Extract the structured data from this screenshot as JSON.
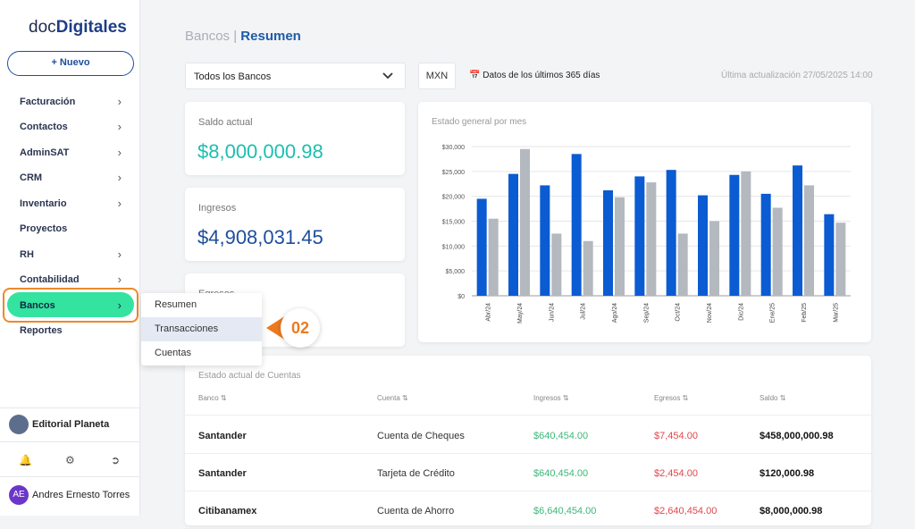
{
  "sidebar": {
    "logo": {
      "prefix": "doc",
      "suffix": "Digitales"
    },
    "new_button": "+ Nuevo",
    "nav": [
      "Facturación",
      "Contactos",
      "AdminSAT",
      "CRM",
      "Inventario",
      "Proyectos",
      "RH",
      "Contabilidad",
      "Bancos",
      "Reportes"
    ],
    "submenu": [
      "Resumen",
      "Transacciones",
      "Cuentas"
    ],
    "callout": "02",
    "organization": "Editorial Planeta",
    "user": {
      "initials": "AE",
      "name": "Andres Ernesto Torres"
    }
  },
  "header": {
    "section": "Bancos",
    "separator": "|",
    "page": "Resumen"
  },
  "filters": {
    "bank": "Todos los Bancos",
    "currency": "MXN",
    "period": "Datos de los últimos 365 días",
    "updated": "Última actualización 27/05/2025 14:00"
  },
  "cards": [
    {
      "label": "Saldo actual",
      "value": "$8,000,000.98"
    },
    {
      "label": "Ingresos",
      "value": "$4,908,031.45"
    },
    {
      "label": "Egresos"
    }
  ],
  "chart_data": {
    "type": "bar",
    "title": "Estado general por mes",
    "categories": [
      "Abr/24",
      "May/24",
      "Jun/24",
      "Jul/24",
      "Ago/24",
      "Sep/24",
      "Oct/24",
      "Nov/24",
      "Dic/24",
      "Ene/25",
      "Feb/25",
      "Mar/25"
    ],
    "series": [
      {
        "color": "#0b5bd3",
        "values": [
          19500,
          24500,
          22200,
          28500,
          21200,
          24000,
          25300,
          20200,
          24300,
          20500,
          26200,
          16400
        ]
      },
      {
        "color": "#b4b8bf",
        "values": [
          15500,
          29500,
          12500,
          11000,
          19800,
          22800,
          12500,
          15000,
          25000,
          17700,
          22200,
          14700
        ]
      }
    ],
    "ylim": [
      0,
      30000
    ],
    "yticks": [
      {
        "value": 0,
        "label": "$0"
      },
      {
        "value": 5000,
        "label": "$5,000"
      },
      {
        "value": 10000,
        "label": "$10,000"
      },
      {
        "value": 15000,
        "label": "$15,000"
      },
      {
        "value": 20000,
        "label": "$20,000"
      },
      {
        "value": 25000,
        "label": "$25,000"
      },
      {
        "value": 30000,
        "label": "$30,000"
      }
    ],
    "grid": true
  },
  "table": {
    "title": "Estado actual de Cuentas",
    "columns": [
      "Banco",
      "Cuenta",
      "Ingresos",
      "Egresos",
      "Saldo"
    ],
    "rows": [
      [
        "Santander",
        "Cuenta de Cheques",
        "$640,454.00",
        "$7,454.00",
        "$458,000,000.98"
      ],
      [
        "Santander",
        "Tarjeta de Crédito",
        "$640,454.00",
        "$2,454.00",
        "$120,000.98"
      ],
      [
        "Citibanamex",
        "Cuenta de Ahorro",
        "$6,640,454.00",
        "$2,640,454.00",
        "$8,000,000.98"
      ]
    ]
  }
}
